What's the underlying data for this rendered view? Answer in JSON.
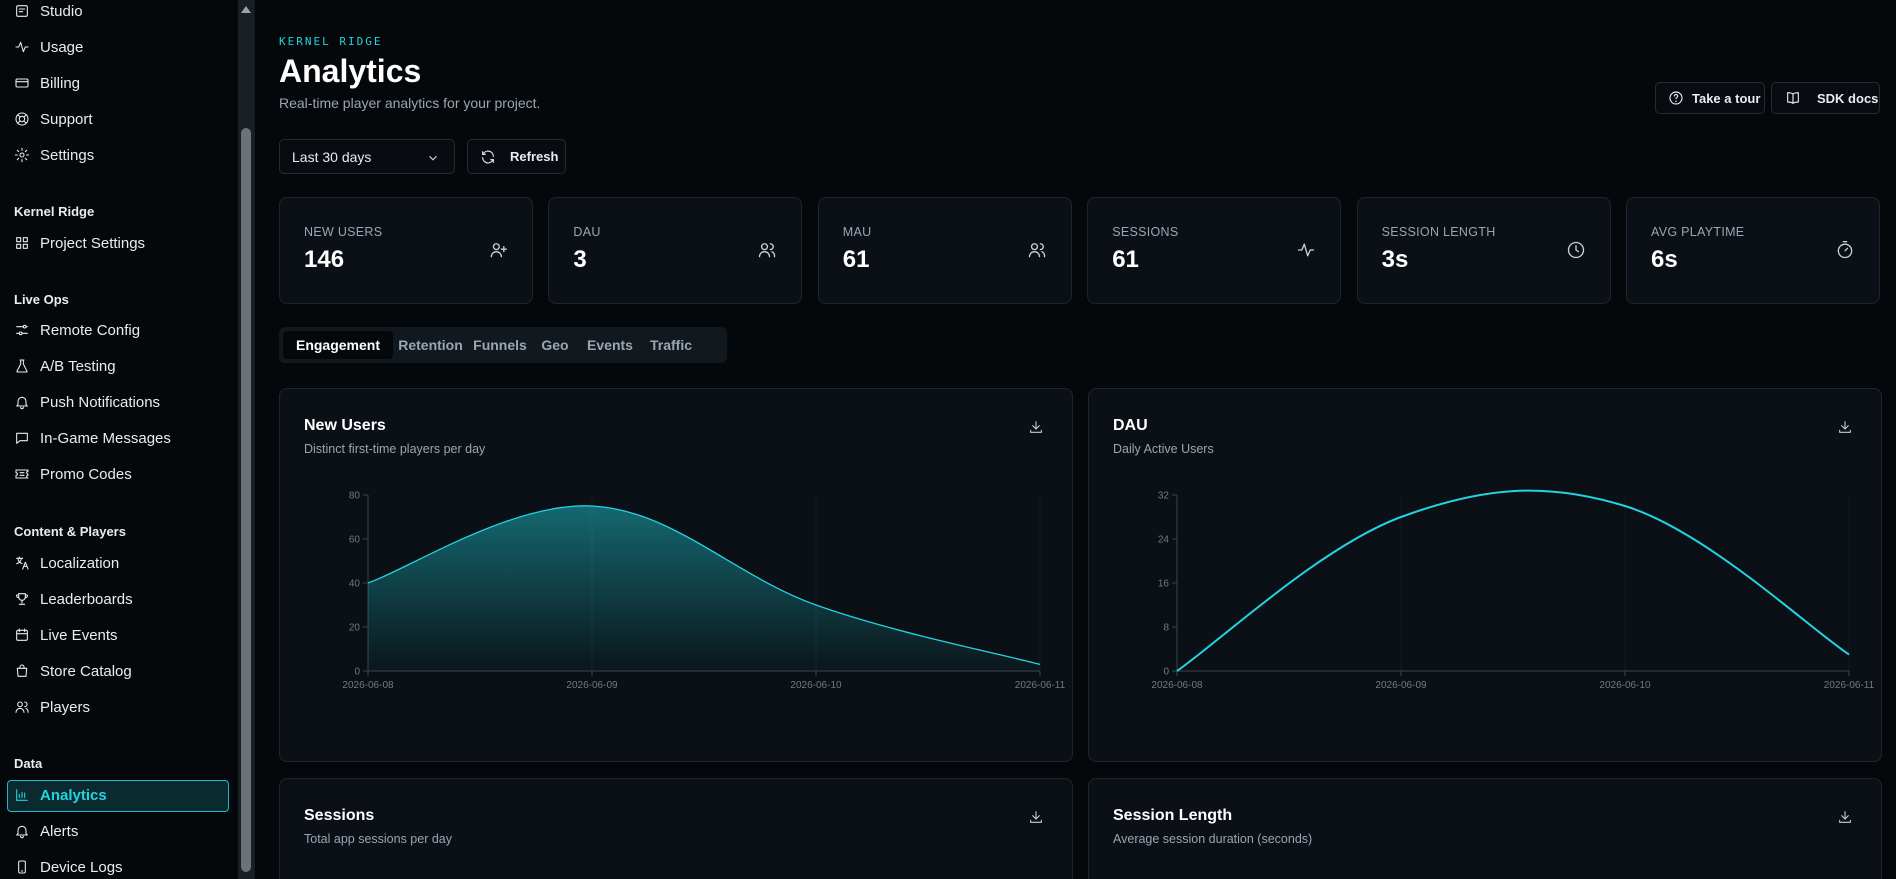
{
  "sidebar": {
    "items_top": [
      {
        "label": "Studio",
        "icon": "studio-icon"
      },
      {
        "label": "Usage",
        "icon": "activity-icon"
      },
      {
        "label": "Billing",
        "icon": "credit-card-icon"
      },
      {
        "label": "Support",
        "icon": "lifebuoy-icon"
      },
      {
        "label": "Settings",
        "icon": "gear-icon"
      }
    ],
    "section_project": "Kernel Ridge",
    "items_project": [
      {
        "label": "Project Settings",
        "icon": "grid-icon"
      }
    ],
    "section_liveops": "Live Ops",
    "items_liveops": [
      {
        "label": "Remote Config",
        "icon": "sliders-icon"
      },
      {
        "label": "A/B Testing",
        "icon": "flask-icon"
      },
      {
        "label": "Push Notifications",
        "icon": "bell-icon"
      },
      {
        "label": "In-Game Messages",
        "icon": "message-icon"
      },
      {
        "label": "Promo Codes",
        "icon": "ticket-icon"
      }
    ],
    "section_content": "Content & Players",
    "items_content": [
      {
        "label": "Localization",
        "icon": "translate-icon"
      },
      {
        "label": "Leaderboards",
        "icon": "trophy-icon"
      },
      {
        "label": "Live Events",
        "icon": "calendar-icon"
      },
      {
        "label": "Store Catalog",
        "icon": "bag-icon"
      },
      {
        "label": "Players",
        "icon": "users-icon"
      }
    ],
    "section_data": "Data",
    "items_data": [
      {
        "label": "Analytics",
        "icon": "bar-chart-icon",
        "active": true
      },
      {
        "label": "Alerts",
        "icon": "bell-icon"
      },
      {
        "label": "Device Logs",
        "icon": "phone-icon"
      }
    ]
  },
  "header": {
    "eyebrow": "KERNEL RIDGE",
    "title": "Analytics",
    "subtitle": "Real-time player analytics for your project.",
    "tour_label": "Take a tour",
    "docs_label": "SDK docs"
  },
  "controls": {
    "range_value": "Last 30 days",
    "refresh_label": "Refresh"
  },
  "kpis": [
    {
      "label": "NEW USERS",
      "value": "146",
      "icon": "user-plus-icon"
    },
    {
      "label": "DAU",
      "value": "3",
      "icon": "users-icon"
    },
    {
      "label": "MAU",
      "value": "61",
      "icon": "users-icon"
    },
    {
      "label": "SESSIONS",
      "value": "61",
      "icon": "activity-icon"
    },
    {
      "label": "SESSION LENGTH",
      "value": "3s",
      "icon": "clock-icon"
    },
    {
      "label": "AVG PLAYTIME",
      "value": "6s",
      "icon": "timer-icon"
    }
  ],
  "tabs": [
    "Engagement",
    "Retention",
    "Funnels",
    "Geo",
    "Events",
    "Traffic"
  ],
  "active_tab": "Engagement",
  "accent_color": "#22d3e0",
  "panels": [
    {
      "title": "New Users",
      "subtitle": "Distinct first-time players per day"
    },
    {
      "title": "DAU",
      "subtitle": "Daily Active Users"
    },
    {
      "title": "Sessions",
      "subtitle": "Total app sessions per day"
    },
    {
      "title": "Session Length",
      "subtitle": "Average session duration (seconds)"
    }
  ],
  "chart_data": [
    {
      "type": "area",
      "x": [
        "2026-06-08",
        "2026-06-09",
        "2026-06-10",
        "2026-06-11"
      ],
      "values": [
        40,
        75,
        30,
        3
      ],
      "ylim": [
        0,
        80
      ],
      "yticks": [
        0,
        20,
        40,
        60,
        80
      ]
    },
    {
      "type": "line",
      "x": [
        "2026-06-08",
        "2026-06-09",
        "2026-06-10",
        "2026-06-11"
      ],
      "values": [
        0,
        28,
        30,
        3
      ],
      "ylim": [
        0,
        32
      ],
      "yticks": [
        0,
        8,
        16,
        24,
        32
      ]
    }
  ]
}
